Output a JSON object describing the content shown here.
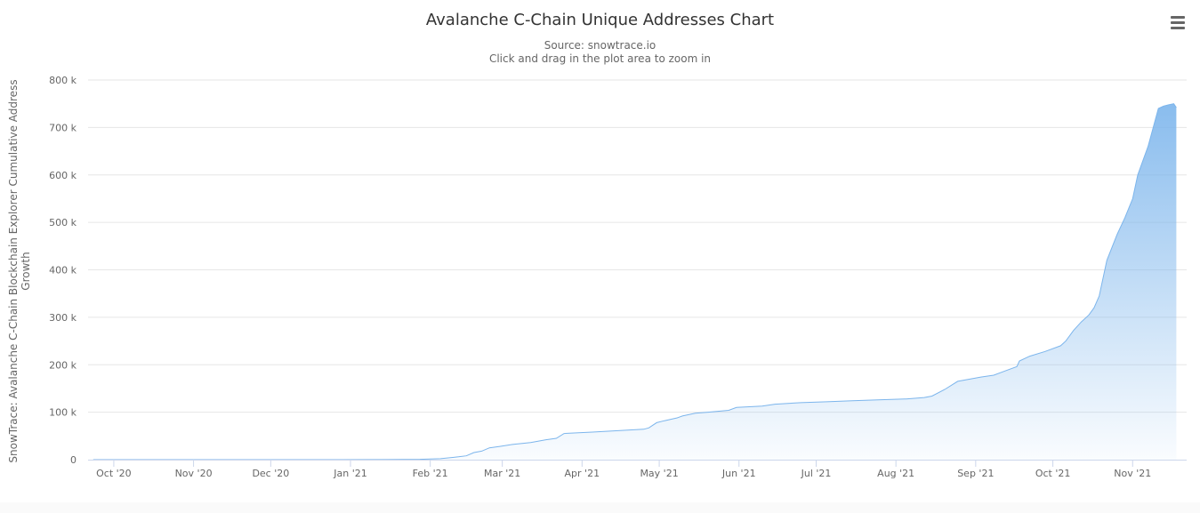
{
  "chart_data": {
    "type": "area",
    "title": "Avalanche C-Chain Unique Addresses Chart",
    "subtitle": [
      "Source: snowtrace.io",
      "Click and drag in the plot area to zoom in"
    ],
    "xlabel": "",
    "ylabel": [
      "SnowTrace: Avalanche C-Chain Blockchain Explorer Cumulative Address",
      "Growth"
    ],
    "x_tick_labels": [
      "Oct '20",
      "Nov '20",
      "Dec '20",
      "Jan '21",
      "Feb '21",
      "Mar '21",
      "Apr '21",
      "May '21",
      "Jun '21",
      "Jul '21",
      "Aug '21",
      "Sep '21",
      "Oct '21",
      "Nov '21"
    ],
    "x_tick_dates": [
      "2020-10-01",
      "2020-11-01",
      "2020-12-01",
      "2021-01-01",
      "2021-02-01",
      "2021-03-01",
      "2021-04-01",
      "2021-05-01",
      "2021-06-01",
      "2021-07-01",
      "2021-08-01",
      "2021-09-01",
      "2021-10-01",
      "2021-11-01"
    ],
    "y_tick_labels": [
      "0",
      "100 k",
      "200 k",
      "300 k",
      "400 k",
      "500 k",
      "600 k",
      "700 k",
      "800 k"
    ],
    "xlim": [
      "2020-09-21",
      "2021-11-22"
    ],
    "ylim": [
      0,
      800000
    ],
    "grid": "horizontal",
    "legend": "none",
    "series": [
      {
        "x": [
          "2020-09-23",
          "2020-10-15",
          "2020-11-15",
          "2020-12-15",
          "2021-01-15",
          "2021-01-28",
          "2021-02-05",
          "2021-02-12",
          "2021-02-15",
          "2021-02-18",
          "2021-02-21",
          "2021-02-24",
          "2021-02-28",
          "2021-03-05",
          "2021-03-12",
          "2021-03-18",
          "2021-03-22",
          "2021-03-25",
          "2021-04-05",
          "2021-04-15",
          "2021-04-25",
          "2021-04-27",
          "2021-04-30",
          "2021-05-03",
          "2021-05-08",
          "2021-05-10",
          "2021-05-15",
          "2021-05-20",
          "2021-05-28",
          "2021-05-31",
          "2021-06-10",
          "2021-06-15",
          "2021-06-25",
          "2021-07-05",
          "2021-07-15",
          "2021-07-25",
          "2021-08-05",
          "2021-08-12",
          "2021-08-15",
          "2021-08-20",
          "2021-08-25",
          "2021-08-30",
          "2021-09-03",
          "2021-09-08",
          "2021-09-12",
          "2021-09-17",
          "2021-09-18",
          "2021-09-22",
          "2021-09-28",
          "2021-10-04",
          "2021-10-06",
          "2021-10-09",
          "2021-10-12",
          "2021-10-15",
          "2021-10-17",
          "2021-10-19",
          "2021-10-22",
          "2021-10-26",
          "2021-10-29",
          "2021-11-01",
          "2021-11-03",
          "2021-11-05",
          "2021-11-07",
          "2021-11-09",
          "2021-11-11",
          "2021-11-13",
          "2021-11-15",
          "2021-11-17",
          "2021-11-18"
        ],
        "values": [
          0,
          0,
          0,
          0,
          200,
          800,
          2000,
          6000,
          8000,
          15000,
          18000,
          25000,
          28000,
          32000,
          36000,
          42000,
          45000,
          55000,
          58000,
          61000,
          64000,
          67000,
          78000,
          82000,
          88000,
          92000,
          98000,
          100000,
          104000,
          110000,
          113000,
          117000,
          120000,
          122000,
          124000,
          126000,
          128000,
          131000,
          134000,
          148000,
          165000,
          170000,
          174000,
          178000,
          186000,
          196000,
          208000,
          218000,
          228000,
          240000,
          250000,
          272000,
          290000,
          305000,
          320000,
          345000,
          420000,
          475000,
          510000,
          550000,
          600000,
          630000,
          660000,
          700000,
          740000,
          745000,
          748000,
          750000,
          742000
        ],
        "color": "#7cb5ec"
      }
    ],
    "colors": {
      "line": "#7cb5ec",
      "fill_top": "#7cb5ec",
      "grid": "#e6e6e6",
      "axis": "#ccd6eb",
      "text": "#666666"
    }
  },
  "ui": {
    "menu_icon": "hamburger-menu-icon"
  }
}
